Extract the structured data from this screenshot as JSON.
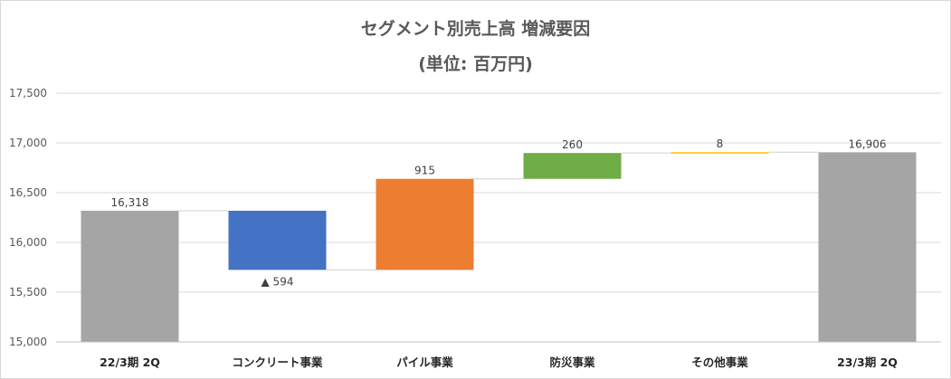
{
  "chart_data": {
    "type": "waterfall",
    "title": "セグメント別売上高 増減要因",
    "subtitle": "(単位: 百万円)",
    "categories": [
      "22/3期 2Q",
      "コンクリート事業",
      "パイル事業",
      "防災事業",
      "その他事業",
      "23/3期 2Q"
    ],
    "kinds": [
      "total",
      "delta",
      "delta",
      "delta",
      "delta",
      "total"
    ],
    "values": [
      16318,
      -594,
      915,
      260,
      8,
      16906
    ],
    "data_labels": [
      "16,318",
      "▲ 594",
      "915",
      "260",
      "8",
      "16,906"
    ],
    "colors": [
      "#a5a5a5",
      "#4472c4",
      "#ed7d31",
      "#70ad47",
      "#ffc000",
      "#a5a5a5"
    ],
    "ylim": [
      15000,
      17500
    ],
    "yticks": [
      15000,
      15500,
      16000,
      16500,
      17000,
      17500
    ],
    "ytick_labels": [
      "15,000",
      "15,500",
      "16,000",
      "16,500",
      "17,000",
      "17,500"
    ],
    "grid": true,
    "legend": "none"
  }
}
